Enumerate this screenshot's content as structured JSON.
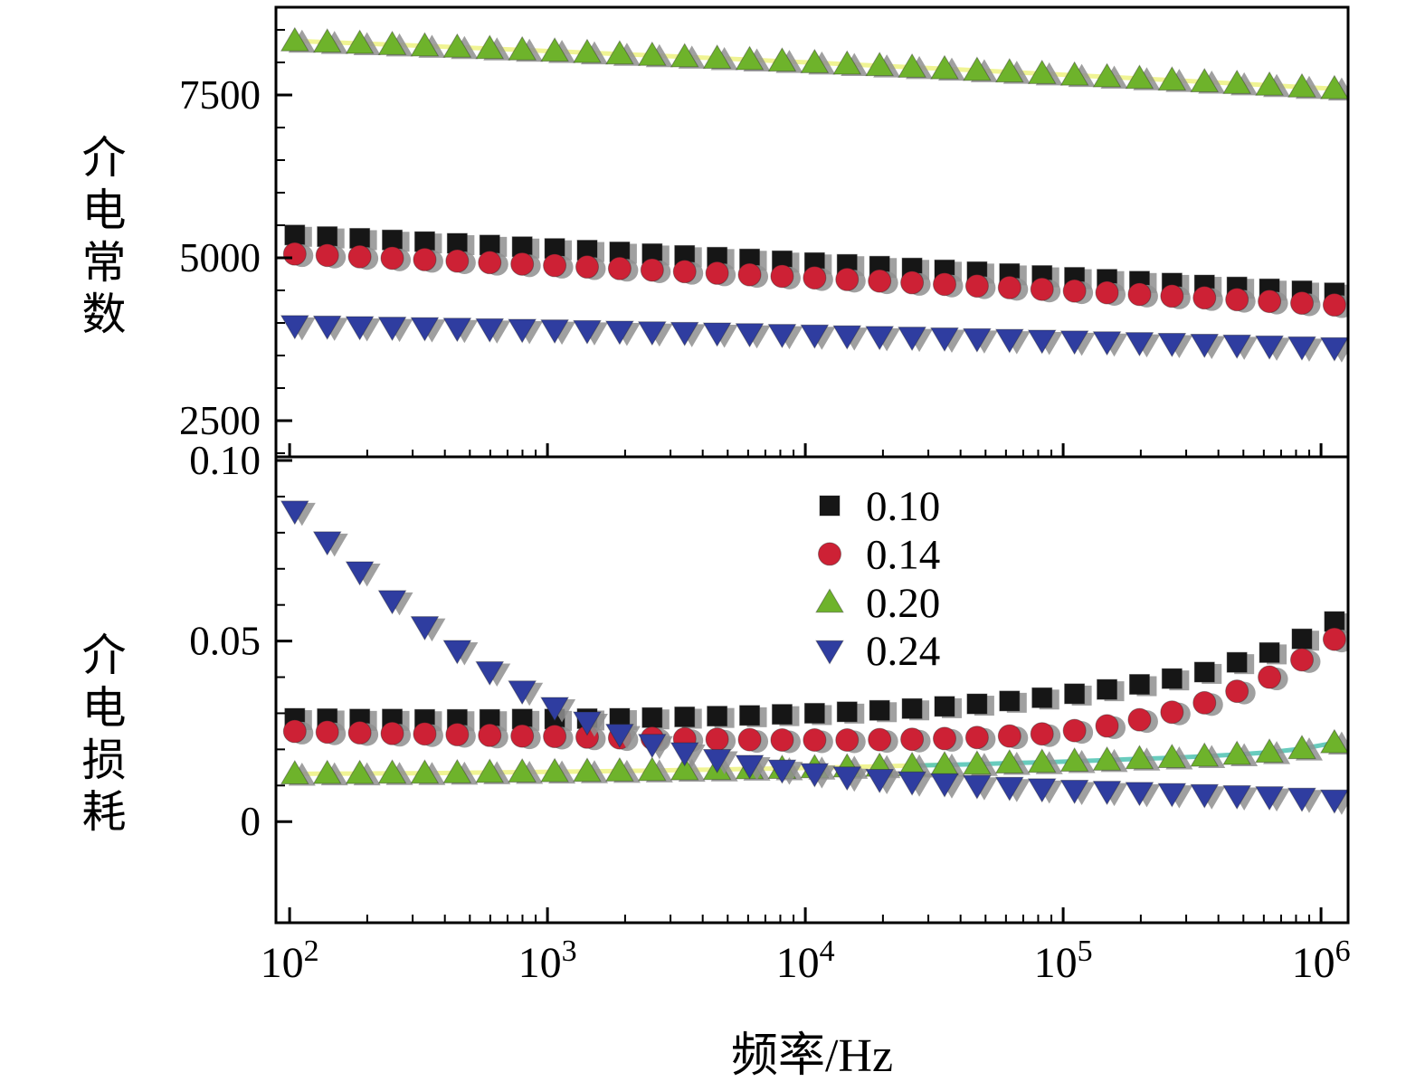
{
  "axis_titles": {
    "top_y": "介电常数",
    "bottom_y": "介电损耗",
    "x": "频率/Hz"
  },
  "colors": {
    "axis": "#000000",
    "background": "#ffffff",
    "shadow": "#8f8f8f",
    "trace_yellow": "#eef387",
    "trace_cyan": "#58c7b6"
  },
  "legend": {
    "items": [
      {
        "label": "0.10",
        "marker": "square",
        "color": "#161616"
      },
      {
        "label": "0.14",
        "marker": "circle",
        "color": "#cd2135"
      },
      {
        "label": "0.20",
        "marker": "triangle-up",
        "color": "#6eb32b"
      },
      {
        "label": "0.24",
        "marker": "triangle-down",
        "color": "#2f3da0"
      }
    ]
  },
  "chart_data": [
    {
      "type": "scatter",
      "panel": "top",
      "ylabel": "介电常数",
      "x_axis": "log10(frequency/Hz)",
      "xlim_log10": [
        1.947,
        6.105
      ],
      "ylim": [
        1944,
        8847
      ],
      "yticks": [
        {
          "value": 7500,
          "label": "7500"
        },
        {
          "value": 5000,
          "label": "5000"
        },
        {
          "value": 2500,
          "label": "2500"
        }
      ],
      "y_minor_ticks": [
        2000,
        3000,
        3500,
        4000,
        4500,
        5500,
        6000,
        6500,
        7000,
        8000,
        8500
      ],
      "x_major_ticks_log10": [
        2,
        3,
        4,
        5,
        6
      ],
      "x_log10": [
        2.02,
        2.146,
        2.272,
        2.398,
        2.524,
        2.65,
        2.776,
        2.902,
        3.028,
        3.154,
        3.28,
        3.406,
        3.532,
        3.658,
        3.784,
        3.91,
        4.036,
        4.162,
        4.288,
        4.414,
        4.54,
        4.666,
        4.792,
        4.918,
        5.044,
        5.17,
        5.296,
        5.422,
        5.548,
        5.674,
        5.8,
        5.926,
        6.052
      ],
      "series": [
        {
          "name": "0.10",
          "marker": "square",
          "color": "#161616",
          "values": [
            5350,
            5325,
            5299,
            5274,
            5248,
            5222,
            5196,
            5170,
            5143,
            5117,
            5090,
            5063,
            5036,
            5009,
            4982,
            4954,
            4926,
            4899,
            4871,
            4843,
            4814,
            4786,
            4757,
            4728,
            4700,
            4670,
            4641,
            4612,
            4582,
            4552,
            4523,
            4493,
            4462
          ]
        },
        {
          "name": "0.14",
          "marker": "circle",
          "color": "#cd2135",
          "values": [
            5060,
            5038,
            5017,
            4995,
            4973,
            4951,
            4928,
            4905,
            4883,
            4860,
            4836,
            4813,
            4789,
            4765,
            4741,
            4717,
            4693,
            4668,
            4644,
            4619,
            4594,
            4568,
            4543,
            4517,
            4491,
            4465,
            4439,
            4412,
            4386,
            4359,
            4332,
            4305,
            4277
          ]
        },
        {
          "name": "0.20",
          "marker": "triangle-up",
          "color": "#6eb32b",
          "values": [
            8330,
            8311,
            8292,
            8272,
            8252,
            8232,
            8212,
            8191,
            8171,
            8150,
            8128,
            8107,
            8085,
            8063,
            8041,
            8018,
            7995,
            7972,
            7949,
            7925,
            7901,
            7877,
            7853,
            7828,
            7803,
            7778,
            7753,
            7727,
            7701,
            7675,
            7649,
            7622,
            7595
          ]
        },
        {
          "name": "0.24",
          "marker": "triangle-down",
          "color": "#2f3da0",
          "values": [
            3960,
            3952,
            3944,
            3936,
            3928,
            3920,
            3911,
            3902,
            3893,
            3884,
            3875,
            3865,
            3856,
            3846,
            3836,
            3825,
            3815,
            3804,
            3793,
            3782,
            3771,
            3759,
            3748,
            3736,
            3724,
            3712,
            3699,
            3687,
            3674,
            3661,
            3648,
            3634,
            3621
          ]
        }
      ]
    },
    {
      "type": "scatter",
      "panel": "bottom",
      "ylabel": "介电损耗",
      "xlabel": "频率/Hz",
      "xlim_log10": [
        1.947,
        6.105
      ],
      "ylim": [
        -0.028,
        0.101
      ],
      "yticks": [
        {
          "value": 0.1,
          "label": "0.10"
        },
        {
          "value": 0.05,
          "label": "0.05"
        },
        {
          "value": 0,
          "label": "0"
        }
      ],
      "y_minor_ticks": [
        0.01,
        0.02,
        0.03,
        0.04,
        0.06,
        0.07,
        0.08,
        0.09
      ],
      "x_major_ticks_log10": [
        2,
        3,
        4,
        5,
        6
      ],
      "xtick_exponents": [
        2,
        3,
        4,
        5,
        6
      ],
      "x_log10": [
        2.02,
        2.146,
        2.272,
        2.398,
        2.524,
        2.65,
        2.776,
        2.902,
        3.028,
        3.154,
        3.28,
        3.406,
        3.532,
        3.658,
        3.784,
        3.91,
        4.036,
        4.162,
        4.288,
        4.414,
        4.54,
        4.666,
        4.792,
        4.918,
        5.044,
        5.17,
        5.296,
        5.422,
        5.548,
        5.674,
        5.8,
        5.926,
        6.052
      ],
      "series": [
        {
          "name": "0.10",
          "marker": "square",
          "color": "#161616",
          "values": [
            0.0286,
            0.0285,
            0.0284,
            0.0284,
            0.0283,
            0.0283,
            0.0283,
            0.0284,
            0.0284,
            0.0285,
            0.0286,
            0.0288,
            0.029,
            0.0292,
            0.0294,
            0.0297,
            0.03,
            0.0304,
            0.0308,
            0.0313,
            0.0319,
            0.0326,
            0.0334,
            0.0343,
            0.0354,
            0.0366,
            0.038,
            0.0396,
            0.0414,
            0.0441,
            0.0468,
            0.0506,
            0.0554
          ]
        },
        {
          "name": "0.14",
          "marker": "circle",
          "color": "#cd2135",
          "values": [
            0.025,
            0.0248,
            0.0246,
            0.0244,
            0.0243,
            0.0241,
            0.0239,
            0.0237,
            0.0236,
            0.0234,
            0.0232,
            0.0231,
            0.0229,
            0.0228,
            0.0227,
            0.0226,
            0.0226,
            0.0226,
            0.0227,
            0.0228,
            0.023,
            0.0233,
            0.0237,
            0.0243,
            0.0252,
            0.0265,
            0.0282,
            0.0303,
            0.0329,
            0.0361,
            0.04,
            0.0448,
            0.0505
          ]
        },
        {
          "name": "0.20",
          "marker": "triangle-up",
          "color": "#6eb32b",
          "values": [
            0.0132,
            0.0133,
            0.0133,
            0.0134,
            0.0134,
            0.0135,
            0.0136,
            0.0137,
            0.0138,
            0.0139,
            0.014,
            0.0141,
            0.0143,
            0.0144,
            0.0146,
            0.0147,
            0.0149,
            0.0151,
            0.0153,
            0.0155,
            0.0157,
            0.0159,
            0.0162,
            0.0164,
            0.0167,
            0.017,
            0.0174,
            0.0177,
            0.0181,
            0.0186,
            0.0192,
            0.0202,
            0.0218
          ]
        },
        {
          "name": "0.24",
          "marker": "triangle-down",
          "color": "#2f3da0",
          "values": [
            0.086,
            0.0775,
            0.0692,
            0.0612,
            0.054,
            0.0474,
            0.0415,
            0.0362,
            0.0316,
            0.0276,
            0.0242,
            0.0214,
            0.0191,
            0.0172,
            0.0156,
            0.0143,
            0.0133,
            0.0124,
            0.0117,
            0.011,
            0.0105,
            0.01,
            0.0095,
            0.0091,
            0.0087,
            0.0084,
            0.0081,
            0.0078,
            0.0075,
            0.0072,
            0.0069,
            0.0065,
            0.006
          ]
        }
      ]
    }
  ]
}
